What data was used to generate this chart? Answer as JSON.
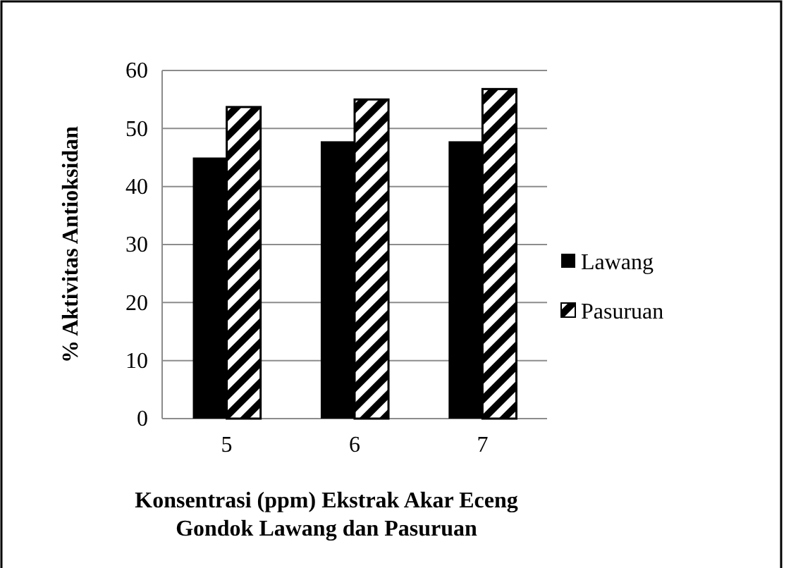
{
  "chart_data": {
    "type": "bar",
    "xlabel": "Konsentrasi (ppm) Ekstrak Akar Eceng Gondok Lawang dan Pasuruan",
    "ylabel": "% Aktivitas Antioksidan",
    "categories": [
      "5",
      "6",
      "7"
    ],
    "series": [
      {
        "name": "Lawang",
        "color": "#000000",
        "values": [
          45,
          47.8,
          47.8
        ]
      },
      {
        "name": "Pasuruan",
        "color": "#000000",
        "values": [
          53.7,
          55,
          56.8
        ]
      }
    ],
    "ylim": [
      0,
      60
    ],
    "yticks": [
      0,
      10,
      20,
      30,
      40,
      50,
      60
    ],
    "grid": "y",
    "legend": "right"
  }
}
